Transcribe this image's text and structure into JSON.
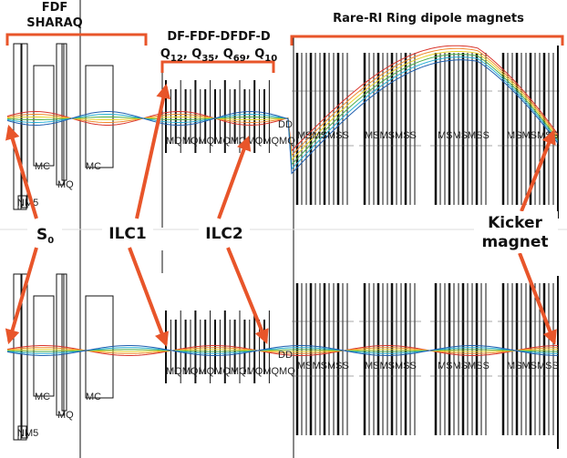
{
  "sections": {
    "sharaq": {
      "lines": [
        "FDF",
        "SHARAQ"
      ]
    },
    "quads": {
      "line1": "DF-FDF-DFDF-D",
      "quads": [
        {
          "base": "Q",
          "sub": "12"
        },
        {
          "base": "Q",
          "sub": "35"
        },
        {
          "base": "Q",
          "sub": "69"
        },
        {
          "base": "Q",
          "sub": "10"
        }
      ],
      "separator": ", "
    },
    "ring": {
      "label": "Rare-RI Ring dipole magnets"
    }
  },
  "pointers": {
    "s0": {
      "base": "S",
      "sub": "0"
    },
    "ilc1": {
      "label": "ILC1"
    },
    "ilc2": {
      "label": "ILC2"
    },
    "kicker": {
      "lines": [
        "Kicker",
        "magnet"
      ]
    }
  },
  "element_labels": {
    "top": [
      "MC",
      "MC",
      "MQ",
      "NM5",
      "MQMQMQMQMQMQMQMQ",
      "DD",
      "MSMSMSS",
      "MSMSMSS",
      "MSMSMSS",
      "MSMSMSS"
    ],
    "bottom": [
      "MC",
      "MC",
      "MQ",
      "NM5",
      "MQMQMQMQMQMQMQMQ",
      "DD",
      "MSMSMSS",
      "MSMSMSS",
      "MSMSMSS",
      "MSMSMSS"
    ]
  }
}
